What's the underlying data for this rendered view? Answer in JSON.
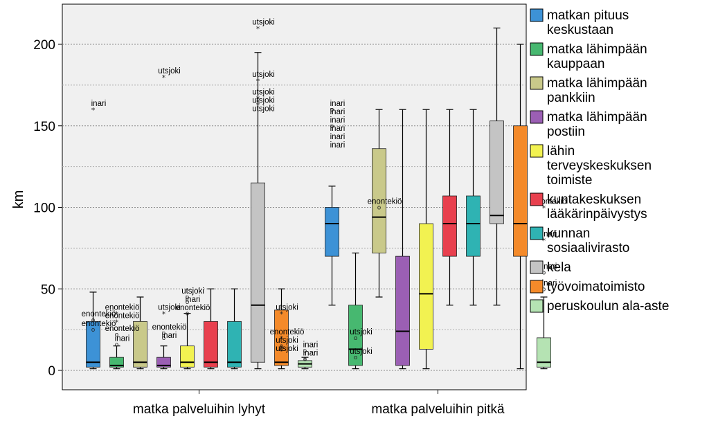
{
  "chart_data": {
    "type": "boxplot",
    "ylabel": "km",
    "ylim": [
      -12,
      225
    ],
    "yticks": [
      0,
      50,
      100,
      150,
      200
    ],
    "grid_major": [
      50,
      100,
      150,
      200
    ],
    "grid_minor": [
      25,
      75,
      125,
      175
    ],
    "legend_position": "right",
    "categories": [
      "matka palveluihin lyhyt",
      "matka palveluihin pitkä"
    ],
    "series": [
      {
        "name": "matkan pituus keskustaan",
        "color": "#3d92d6",
        "boxes": [
          {
            "whisker_low": 1,
            "q1": 2,
            "median": 5,
            "q3": 30,
            "whisker_high": 48,
            "outliers": [
              {
                "value": 160,
                "symbol": "*",
                "label": "inari"
              },
              {
                "value": 31,
                "symbol": "o",
                "label": "enontekiö"
              },
              {
                "value": 25,
                "symbol": "o",
                "label": "enontekiö"
              }
            ]
          },
          {
            "whisker_low": 40,
            "q1": 70,
            "median": 90,
            "q3": 100,
            "whisker_high": 113,
            "outliers": [
              {
                "value": 160,
                "symbol": "o",
                "label": "inari"
              },
              {
                "value": 160,
                "symbol": "o",
                "label": "inari"
              },
              {
                "value": 160,
                "symbol": "o",
                "label": "inari"
              },
              {
                "value": 150,
                "symbol": "o",
                "label": "inari"
              },
              {
                "value": 150,
                "symbol": "o",
                "label": "inari"
              },
              {
                "value": 150,
                "symbol": "o",
                "label": "inari"
              }
            ]
          }
        ]
      },
      {
        "name": "matka lähimpään kauppaan",
        "color": "#47b870",
        "boxes": [
          {
            "whisker_low": 1,
            "q1": 2,
            "median": 3,
            "q3": 8,
            "whisker_high": 15,
            "outliers": [
              {
                "value": 35,
                "symbol": "*",
                "label": "enontekiö"
              },
              {
                "value": 30,
                "symbol": "*",
                "label": "enontekiö"
              },
              {
                "value": 22,
                "symbol": "o",
                "label": "enontekiö"
              },
              {
                "value": 16,
                "symbol": "o",
                "label": "inari"
              }
            ]
          },
          {
            "whisker_low": 1,
            "q1": 3,
            "median": 13,
            "q3": 40,
            "whisker_high": 72,
            "outliers": [
              {
                "value": 20,
                "symbol": "o",
                "label": "utsjoki"
              },
              {
                "value": 8,
                "symbol": "o",
                "label": "utsjoki"
              }
            ]
          }
        ]
      },
      {
        "name": "matka lähimpään pankkiin",
        "color": "#c9c98a",
        "boxes": [
          {
            "whisker_low": 1,
            "q1": 2,
            "median": 5,
            "q3": 30,
            "whisker_high": 45,
            "outliers": []
          },
          {
            "whisker_low": 45,
            "q1": 72,
            "median": 94,
            "q3": 136,
            "whisker_high": 160,
            "outliers": [
              {
                "value": 100,
                "symbol": "o",
                "label": "enontekiö"
              }
            ]
          }
        ]
      },
      {
        "name": "matka lähimpään postiin",
        "color": "#9b5fb4",
        "boxes": [
          {
            "whisker_low": 1,
            "q1": 2,
            "median": 3,
            "q3": 8,
            "whisker_high": 15,
            "outliers": [
              {
                "value": 180,
                "symbol": "*",
                "label": "utsjoki"
              },
              {
                "value": 35,
                "symbol": "*",
                "label": "utsjoki"
              },
              {
                "value": 23,
                "symbol": "o",
                "label": "enontekiö"
              },
              {
                "value": 20,
                "symbol": "o",
                "label": "inari"
              }
            ]
          },
          {
            "whisker_low": 1,
            "q1": 3,
            "median": 24,
            "q3": 70,
            "whisker_high": 160,
            "outliers": []
          }
        ]
      },
      {
        "name": "lähin terveyskeskuksen toimiste",
        "color": "#f2f251",
        "boxes": [
          {
            "whisker_low": 1,
            "q1": 2,
            "median": 5,
            "q3": 15,
            "whisker_high": 35,
            "outliers": [
              {
                "value": 45,
                "symbol": "o",
                "label": "utsjoki"
              },
              {
                "value": 42,
                "symbol": "o",
                "label": "inari"
              },
              {
                "value": 35,
                "symbol": "o",
                "label": "enontekiö"
              }
            ]
          },
          {
            "whisker_low": 1,
            "q1": 13,
            "median": 47,
            "q3": 90,
            "whisker_high": 160,
            "outliers": []
          }
        ]
      },
      {
        "name": "kuntakeskuksen lääkärinpäivystys",
        "color": "#e8404e",
        "boxes": [
          {
            "whisker_low": 1,
            "q1": 2,
            "median": 5,
            "q3": 30,
            "whisker_high": 50,
            "outliers": []
          },
          {
            "whisker_low": 40,
            "q1": 70,
            "median": 90,
            "q3": 107,
            "whisker_high": 160,
            "outliers": []
          }
        ]
      },
      {
        "name": "kunnan sosiaalivirasto",
        "color": "#2fb3b3",
        "boxes": [
          {
            "whisker_low": 1,
            "q1": 2,
            "median": 5,
            "q3": 30,
            "whisker_high": 50,
            "outliers": []
          },
          {
            "whisker_low": 40,
            "q1": 70,
            "median": 90,
            "q3": 107,
            "whisker_high": 160,
            "outliers": []
          }
        ]
      },
      {
        "name": "kela",
        "color": "#c4c4c4",
        "boxes": [
          {
            "whisker_low": 1,
            "q1": 5,
            "median": 40,
            "q3": 115,
            "whisker_high": 195,
            "outliers": [
              {
                "value": 210,
                "symbol": "*",
                "label": "utsjoki"
              },
              {
                "value": 178,
                "symbol": "*",
                "label": "utsjoki"
              },
              {
                "value": 167,
                "symbol": "*",
                "label": "utsjoki"
              },
              {
                "value": 165,
                "symbol": "*",
                "label": "utsjoki"
              },
              {
                "value": 163,
                "symbol": "*",
                "label": "utsjoki"
              }
            ]
          },
          {
            "whisker_low": 40,
            "q1": 90,
            "median": 95,
            "q3": 153,
            "whisker_high": 210,
            "outliers": []
          }
        ]
      },
      {
        "name": "työvoimatoimisto",
        "color": "#f48a2a",
        "boxes": [
          {
            "whisker_low": 1,
            "q1": 3,
            "median": 5,
            "q3": 37,
            "whisker_high": 50,
            "outliers": [
              {
                "value": 35,
                "symbol": "*",
                "label": "utsjoki"
              },
              {
                "value": 20,
                "symbol": "*",
                "label": "enontekiö"
              },
              {
                "value": 15,
                "symbol": "o",
                "label": "utsjoki"
              },
              {
                "value": 13,
                "symbol": "o",
                "label": "utsjoki"
              }
            ]
          },
          {
            "whisker_low": 1,
            "q1": 70,
            "median": 90,
            "q3": 150,
            "whisker_high": 200,
            "outliers": []
          }
        ]
      },
      {
        "name": "peruskoulun ala-aste",
        "color": "#b5e3b3",
        "boxes": [
          {
            "whisker_low": 1,
            "q1": 2,
            "median": 4,
            "q3": 6,
            "whisker_high": 8,
            "outliers": [
              {
                "value": 12,
                "symbol": "o",
                "label": "inari"
              },
              {
                "value": 7,
                "symbol": "o",
                "label": "inari"
              }
            ]
          },
          {
            "whisker_low": 1,
            "q1": 2,
            "median": 5,
            "q3": 20,
            "whisker_high": 45,
            "outliers": [
              {
                "value": 100,
                "symbol": "*",
                "label": "enontekiö"
              },
              {
                "value": 80,
                "symbol": "*",
                "label": "inari"
              },
              {
                "value": 60,
                "symbol": "o",
                "label": "inari"
              },
              {
                "value": 50,
                "symbol": "o",
                "label": "inari"
              }
            ]
          }
        ]
      }
    ]
  }
}
